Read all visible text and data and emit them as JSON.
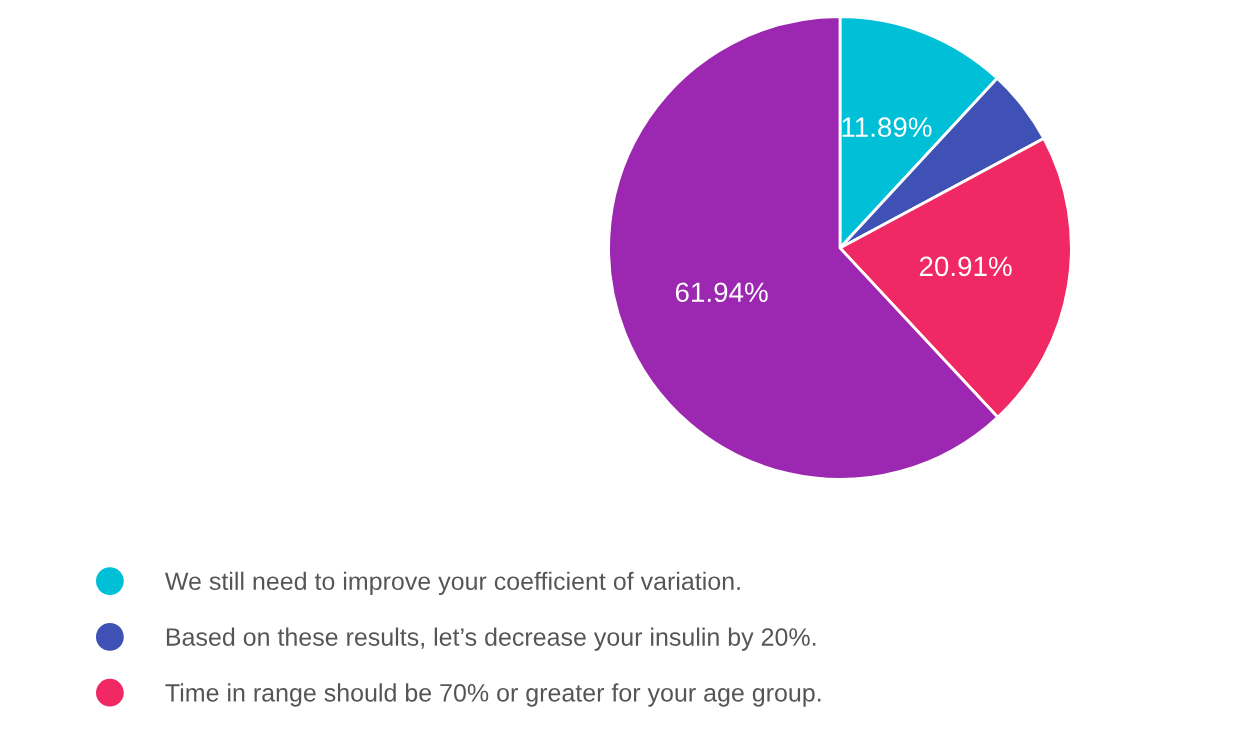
{
  "chart_data": {
    "type": "pie",
    "categories": [
      "We still need to improve your coefficient of variation.",
      "Based on these results, let’s decrease your insulin by 20%.",
      "Time in range should be 70% or greater for your age group.",
      null
    ],
    "values": [
      11.89,
      5.26,
      20.91,
      61.94
    ],
    "colors": [
      "#00c0d8",
      "#3f51b5",
      "#f02864",
      "#9c27b0"
    ],
    "value_labels": [
      "11.89%",
      null,
      "20.91%",
      "61.94%"
    ],
    "legend": "bottom"
  }
}
